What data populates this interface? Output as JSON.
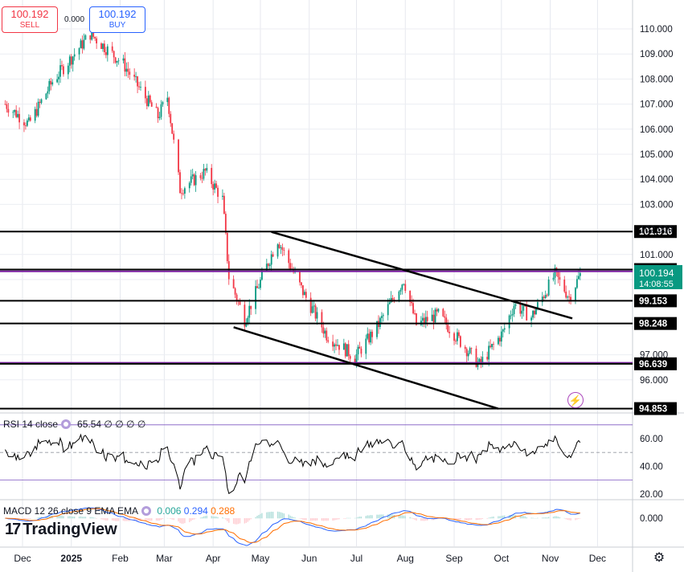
{
  "trade": {
    "sell_price": "100.192",
    "sell_label": "SELL",
    "spread": "0.000",
    "buy_price": "100.192",
    "buy_label": "BUY"
  },
  "chart_data": {
    "type": "candlestick",
    "price_axis": {
      "ticks": [
        "110.000",
        "109.000",
        "108.000",
        "107.000",
        "106.000",
        "105.000",
        "104.000",
        "103.000",
        "102.000",
        "101.000",
        "100.000",
        "97.000",
        "96.000"
      ],
      "ylim": [
        94.5,
        111.1
      ]
    },
    "time_axis": {
      "ticks": [
        "Dec",
        "2025",
        "Feb",
        "Mar",
        "Apr",
        "May",
        "Jun",
        "Jul",
        "Aug",
        "Sep",
        "Oct",
        "Nov",
        "Dec"
      ]
    },
    "current": {
      "price": "100.194",
      "countdown": "14:08:55",
      "color": "#089981"
    },
    "horizontal_levels": [
      {
        "price": 101.916,
        "label": "101.916",
        "color": "#000000"
      },
      {
        "price": 100.399,
        "label": "100.399",
        "color": "#000000"
      },
      {
        "price": 99.153,
        "label": "99.153",
        "color": "#000000"
      },
      {
        "price": 98.248,
        "label": "98.248",
        "color": "#000000"
      },
      {
        "price": 96.639,
        "label": "96.639",
        "color": "#000000"
      },
      {
        "price": 94.853,
        "label": "94.853",
        "color": "#000000"
      }
    ],
    "purple_levels": [
      100.33,
      96.68
    ],
    "trendlines": [
      {
        "from": [
          "2025-05-08",
          101.9
        ],
        "to": [
          "2025-11-15",
          98.45
        ]
      },
      {
        "from": [
          "2025-04-14",
          98.1
        ],
        "to": [
          "2025-09-29",
          94.85
        ]
      }
    ],
    "key_points": [
      {
        "date": "2024-11-20",
        "price": 107.0
      },
      {
        "date": "2024-12-05",
        "price": 106.2
      },
      {
        "date": "2024-12-20",
        "price": 107.9
      },
      {
        "date": "2025-01-13",
        "price": 109.8
      },
      {
        "date": "2025-02-03",
        "price": 108.6
      },
      {
        "date": "2025-02-25",
        "price": 106.5
      },
      {
        "date": "2025-03-03",
        "price": 107.3
      },
      {
        "date": "2025-03-11",
        "price": 103.6
      },
      {
        "date": "2025-03-27",
        "price": 104.3
      },
      {
        "date": "2025-04-07",
        "price": 103.2
      },
      {
        "date": "2025-04-11",
        "price": 100.1
      },
      {
        "date": "2025-04-21",
        "price": 98.4
      },
      {
        "date": "2025-05-12",
        "price": 101.6
      },
      {
        "date": "2025-05-28",
        "price": 99.5
      },
      {
        "date": "2025-06-12",
        "price": 97.8
      },
      {
        "date": "2025-06-30",
        "price": 96.9
      },
      {
        "date": "2025-07-14",
        "price": 98.1
      },
      {
        "date": "2025-07-31",
        "price": 100.0
      },
      {
        "date": "2025-08-08",
        "price": 98.2
      },
      {
        "date": "2025-08-22",
        "price": 98.6
      },
      {
        "date": "2025-09-17",
        "price": 96.6
      },
      {
        "date": "2025-10-02",
        "price": 97.9
      },
      {
        "date": "2025-10-09",
        "price": 99.0
      },
      {
        "date": "2025-10-20",
        "price": 98.5
      },
      {
        "date": "2025-11-04",
        "price": 100.2
      },
      {
        "date": "2025-11-13",
        "price": 99.3
      },
      {
        "date": "2025-11-20",
        "price": 100.19
      }
    ],
    "rsi": {
      "label": "RSI 14 close",
      "value": "65.54",
      "placeholders": [
        "∅",
        "∅",
        "∅",
        "∅"
      ],
      "ticks": [
        "60.00",
        "40.00",
        "20.00"
      ],
      "ylim": [
        15,
        76
      ],
      "levels": [
        70,
        50,
        30
      ],
      "line_color": "#000000"
    },
    "macd": {
      "label": "MACD 12 26 close 9 EMA EMA",
      "hist": "0.006",
      "hist_color": "#26a69a",
      "macd": "0.294",
      "macd_color": "#2962ff",
      "signal": "0.288",
      "signal_color": "#ff6d00",
      "ticks": [
        "0.000"
      ]
    }
  },
  "branding": {
    "logo_text": "TradingView"
  },
  "icons": {
    "settings": "gear-icon",
    "rsi": "indicator-icon",
    "macd": "indicator-icon",
    "flash": "flash-icon"
  }
}
